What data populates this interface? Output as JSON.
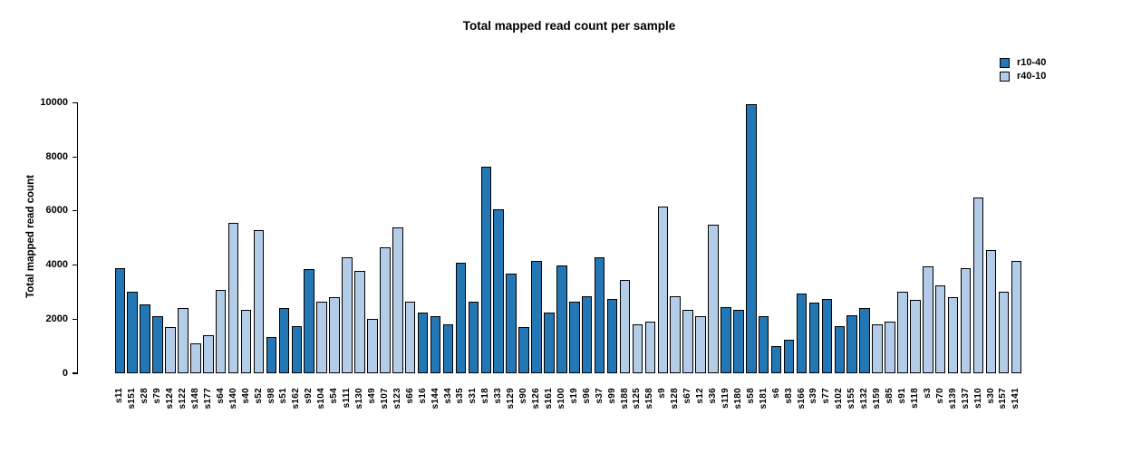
{
  "chart_data": {
    "type": "bar",
    "title": "Total mapped read count per sample",
    "xlabel": "",
    "ylabel": "Total mapped read count",
    "ylim": [
      0,
      10000
    ],
    "yticks": [
      "0",
      "2000",
      "4000",
      "6000",
      "8000",
      "10000"
    ],
    "grid": false,
    "legend_position": "top-right",
    "legend": [
      {
        "label": "r10-40",
        "color": "#2377b4"
      },
      {
        "label": "r40-10",
        "color": "#b3cce8"
      }
    ],
    "categories": [
      "s11",
      "s151",
      "s28",
      "s79",
      "s124",
      "s122",
      "s148",
      "s177",
      "s64",
      "s140",
      "s40",
      "s52",
      "s98",
      "s51",
      "s162",
      "s92",
      "s104",
      "s54",
      "s111",
      "s130",
      "s49",
      "s107",
      "s123",
      "s66",
      "s16",
      "s144",
      "s34",
      "s35",
      "s31",
      "s18",
      "s33",
      "s129",
      "s90",
      "s126",
      "s161",
      "s100",
      "s19",
      "s96",
      "s37",
      "s99",
      "s188",
      "s125",
      "s158",
      "s9",
      "s128",
      "s67",
      "s12",
      "s36",
      "s119",
      "s180",
      "s58",
      "s181",
      "s6",
      "s83",
      "s166",
      "s39",
      "s77",
      "s102",
      "s155",
      "s132",
      "s159",
      "s85",
      "s91",
      "s118",
      "s3",
      "s70",
      "s139",
      "s137",
      "s110",
      "s30",
      "s157",
      "s141"
    ],
    "values": [
      3900,
      3000,
      2550,
      2100,
      1700,
      2400,
      1100,
      1400,
      3100,
      5550,
      2350,
      5300,
      1350,
      2400,
      1750,
      3850,
      2650,
      2800,
      4300,
      3800,
      2000,
      4650,
      5400,
      2650,
      2250,
      2100,
      1800,
      4100,
      2650,
      7650,
      6050,
      3700,
      1700,
      4150,
      2250,
      4000,
      2650,
      2850,
      4300,
      2750,
      3450,
      1800,
      1900,
      6150,
      2850,
      2350,
      2100,
      5500,
      2450,
      2350,
      9950,
      2100,
      1000,
      1250,
      2950,
      2600,
      2750,
      1750,
      2150,
      2400,
      1800,
      1900,
      3000,
      2700,
      3950,
      3250,
      2800,
      3900,
      6500,
      4550,
      3000,
      4150
    ],
    "groups": [
      "r10-40",
      "r10-40",
      "r10-40",
      "r10-40",
      "r40-10",
      "r40-10",
      "r40-10",
      "r40-10",
      "r40-10",
      "r40-10",
      "r40-10",
      "r40-10",
      "r10-40",
      "r10-40",
      "r10-40",
      "r10-40",
      "r40-10",
      "r40-10",
      "r40-10",
      "r40-10",
      "r40-10",
      "r40-10",
      "r40-10",
      "r40-10",
      "r10-40",
      "r10-40",
      "r10-40",
      "r10-40",
      "r10-40",
      "r10-40",
      "r10-40",
      "r10-40",
      "r10-40",
      "r10-40",
      "r10-40",
      "r10-40",
      "r10-40",
      "r10-40",
      "r10-40",
      "r10-40",
      "r40-10",
      "r40-10",
      "r40-10",
      "r40-10",
      "r40-10",
      "r40-10",
      "r40-10",
      "r40-10",
      "r10-40",
      "r10-40",
      "r10-40",
      "r10-40",
      "r10-40",
      "r10-40",
      "r10-40",
      "r10-40",
      "r10-40",
      "r10-40",
      "r10-40",
      "r10-40",
      "r40-10",
      "r40-10",
      "r40-10",
      "r40-10",
      "r40-10",
      "r40-10",
      "r40-10",
      "r40-10",
      "r40-10",
      "r40-10",
      "r40-10",
      "r40-10"
    ]
  }
}
